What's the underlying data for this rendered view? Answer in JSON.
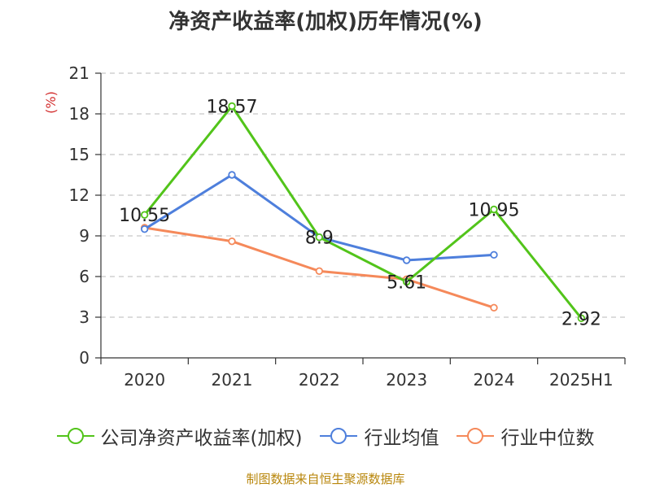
{
  "chart_data": {
    "type": "line",
    "title": "净资产收益率(加权)历年情况(%)",
    "ylabel": "(%)",
    "categories": [
      "2020",
      "2021",
      "2022",
      "2023",
      "2024",
      "2025H1"
    ],
    "ylim": [
      0,
      21
    ],
    "yticks": [
      0,
      3,
      6,
      9,
      12,
      15,
      18,
      21
    ],
    "grid": true,
    "legend_position": "bottom",
    "series": [
      {
        "name": "公司净资产收益率(加权)",
        "color": "#52c41a",
        "values": [
          10.55,
          18.57,
          8.9,
          5.61,
          10.95,
          2.92
        ],
        "show_labels": true
      },
      {
        "name": "行业均值",
        "color": "#4e7fdc",
        "values": [
          9.5,
          13.5,
          8.9,
          7.2,
          7.6,
          null
        ],
        "show_labels": false
      },
      {
        "name": "行业中位数",
        "color": "#f5895a",
        "values": [
          9.6,
          8.6,
          6.4,
          5.8,
          3.7,
          null
        ],
        "show_labels": false
      }
    ]
  },
  "footer": {
    "source": "制图数据来自恒生聚源数据库"
  }
}
